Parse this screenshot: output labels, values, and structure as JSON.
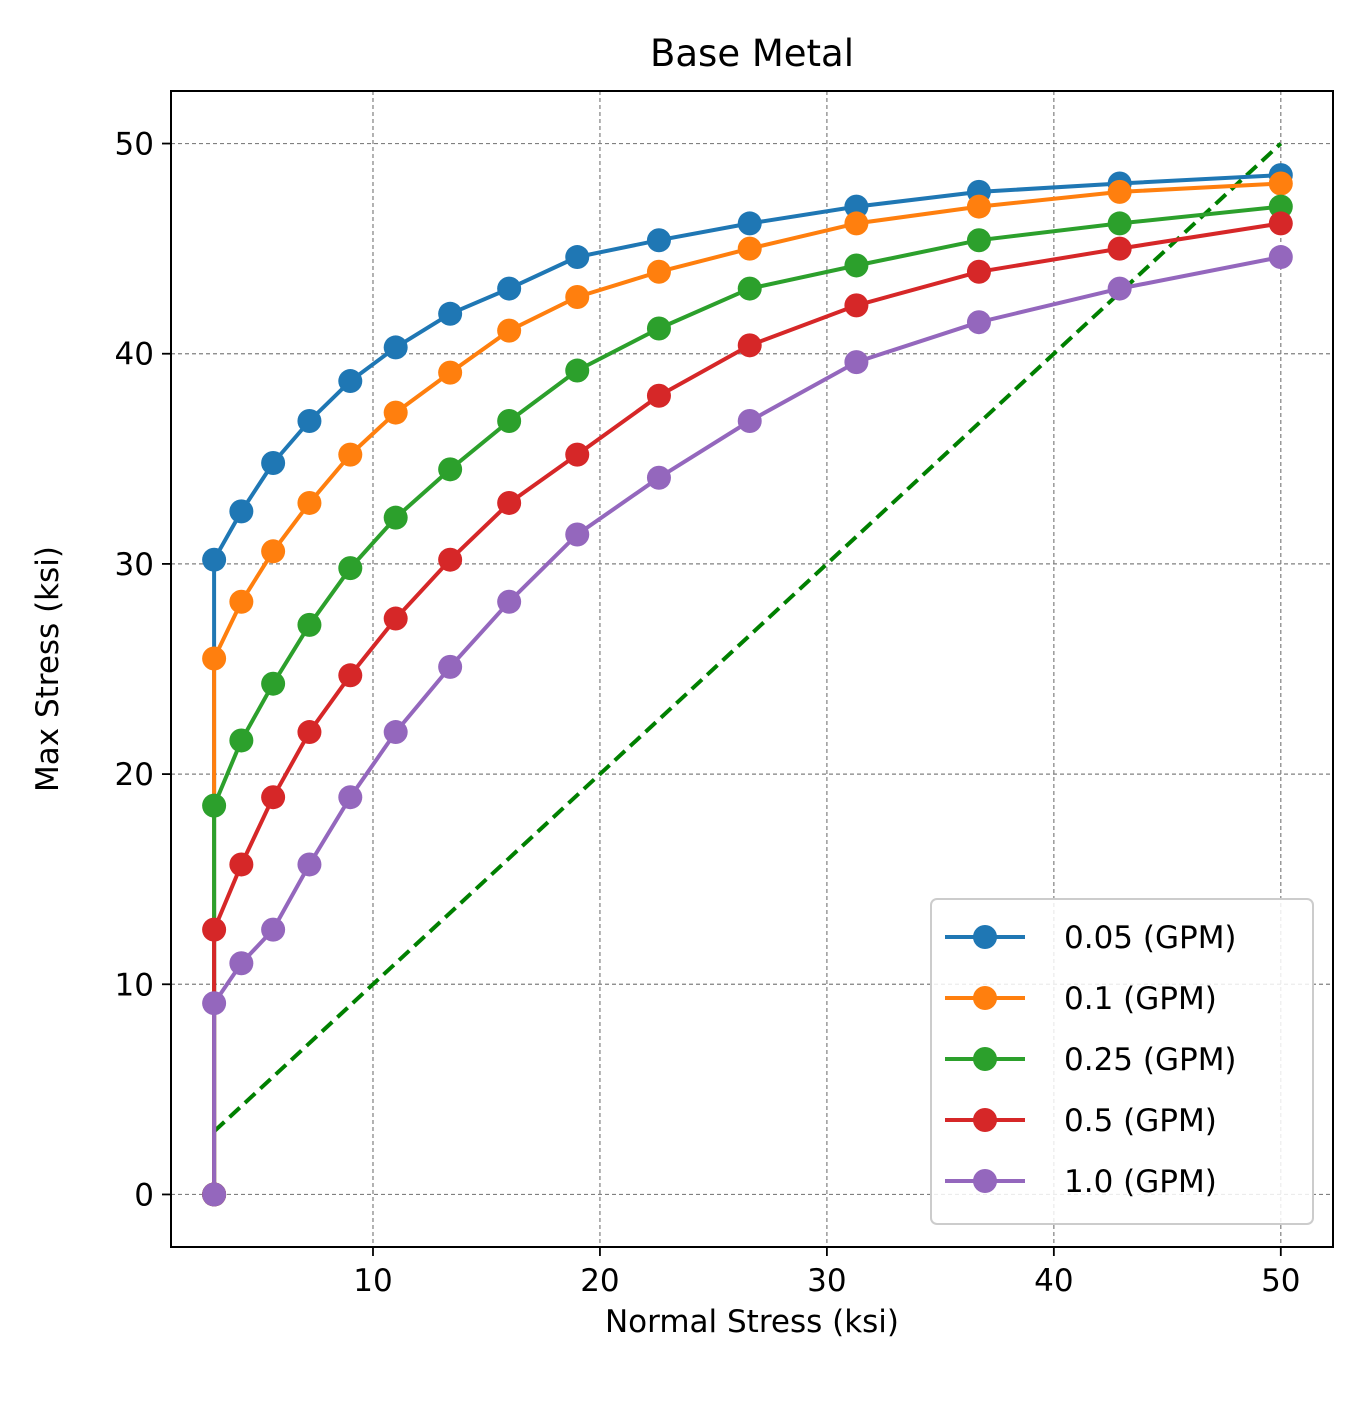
{
  "chart_data": {
    "type": "line",
    "title": "Base Metal",
    "xlabel": "Normal Stress (ksi)",
    "ylabel": "Max Stress (ksi)",
    "xlim": [
      1.1,
      52.3
    ],
    "ylim": [
      -2.5,
      52.5
    ],
    "xticks": [
      10,
      20,
      30,
      40,
      50
    ],
    "yticks": [
      0,
      10,
      20,
      30,
      40,
      50
    ],
    "grid": true,
    "legend_position": "lower right",
    "x": [
      3.0,
      3.0,
      4.2,
      5.6,
      7.2,
      9.0,
      11.0,
      13.4,
      16.0,
      19.0,
      22.6,
      26.6,
      31.3,
      36.7,
      42.9,
      50.0
    ],
    "series": [
      {
        "name": "0.05 (GPM)",
        "color": "#1f77b4",
        "values": [
          0.0,
          30.2,
          32.5,
          34.8,
          36.8,
          38.7,
          40.3,
          41.9,
          43.1,
          44.6,
          45.4,
          46.2,
          47.0,
          47.7,
          48.1,
          48.5
        ]
      },
      {
        "name": "0.1 (GPM)",
        "color": "#ff7f0e",
        "values": [
          0.0,
          25.5,
          28.2,
          30.6,
          32.9,
          35.2,
          37.2,
          39.1,
          41.1,
          42.7,
          43.9,
          45.0,
          46.2,
          47.0,
          47.7,
          48.1
        ]
      },
      {
        "name": "0.25 (GPM)",
        "color": "#2ca02c",
        "values": [
          0.0,
          18.5,
          21.6,
          24.3,
          27.1,
          29.8,
          32.2,
          34.5,
          36.8,
          39.2,
          41.2,
          43.1,
          44.2,
          45.4,
          46.2,
          47.0
        ]
      },
      {
        "name": "0.5 (GPM)",
        "color": "#d62728",
        "values": [
          0.0,
          12.6,
          15.7,
          18.9,
          22.0,
          24.7,
          27.4,
          30.2,
          32.9,
          35.2,
          38.0,
          40.4,
          42.3,
          43.9,
          45.0,
          46.2
        ]
      },
      {
        "name": "1.0 (GPM)",
        "color": "#9467bd",
        "values": [
          0.0,
          9.1,
          11.0,
          12.6,
          15.7,
          18.9,
          22.0,
          25.1,
          28.2,
          31.4,
          34.1,
          36.8,
          39.6,
          41.5,
          43.1,
          44.6
        ]
      }
    ],
    "reference_line": {
      "style": "dashed",
      "color": "#008000",
      "x": [
        3.0,
        50.0
      ],
      "y": [
        3.0,
        50.0
      ]
    }
  }
}
